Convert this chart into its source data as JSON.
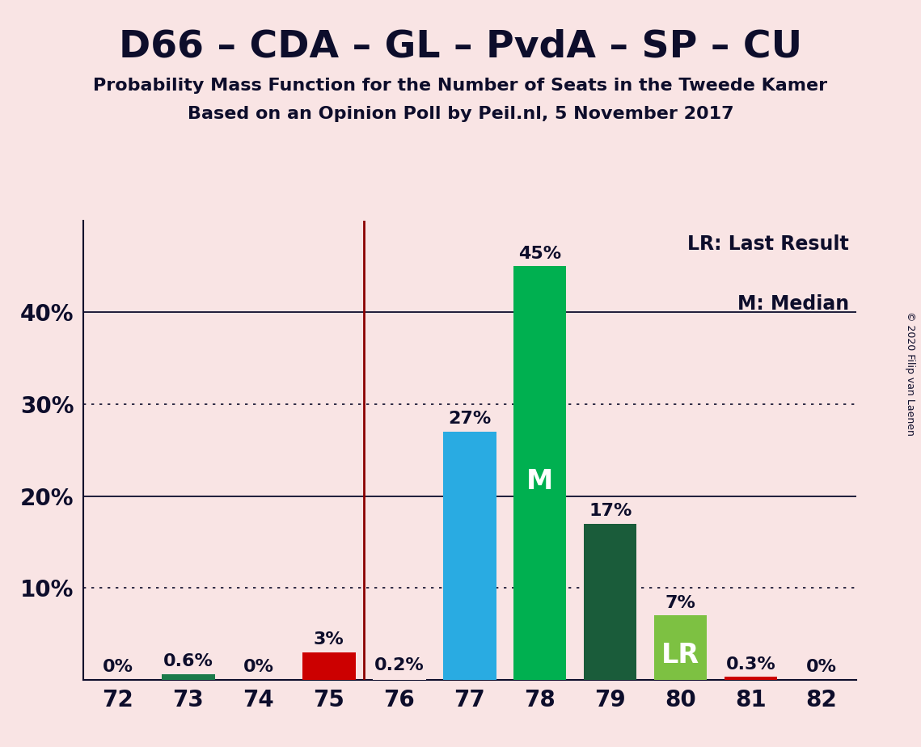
{
  "title": "D66 – CDA – GL – PvdA – SP – CU",
  "subtitle1": "Probability Mass Function for the Number of Seats in the Tweede Kamer",
  "subtitle2": "Based on an Opinion Poll by Peil.nl, 5 November 2017",
  "copyright": "© 2020 Filip van Laenen",
  "background_color": "#f9e4e4",
  "categories": [
    72,
    73,
    74,
    75,
    76,
    77,
    78,
    79,
    80,
    81,
    82
  ],
  "values": [
    0.0,
    0.6,
    0.0,
    3.0,
    0.2,
    27.0,
    45.0,
    17.0,
    7.0,
    0.3,
    0.0
  ],
  "bar_colors": [
    "#f9e4e4",
    "#1a7a4a",
    "#f9e4e4",
    "#cc0000",
    "#f9e4e4",
    "#29abe2",
    "#00b050",
    "#1a5c3a",
    "#7dc142",
    "#cc0000",
    "#f9e4e4"
  ],
  "bar_labels": [
    "0%",
    "0.6%",
    "0%",
    "3%",
    "0.2%",
    "27%",
    "45%",
    "17%",
    "7%",
    "0.3%",
    "0%"
  ],
  "median_label_bar_idx": 6,
  "median_label_text": "M",
  "lr_label_bar_idx": 8,
  "lr_label_text": "LR",
  "vline_idx": 3.5,
  "ylim": [
    0,
    50
  ],
  "yticks": [
    0,
    10,
    20,
    30,
    40
  ],
  "ytick_labels": [
    "",
    "10%",
    "20%",
    "30%",
    "40%"
  ],
  "dotted_lines": [
    10,
    30
  ],
  "solid_lines": [
    20,
    40
  ],
  "legend_text1": "LR: Last Result",
  "legend_text2": "M: Median",
  "title_fontsize": 34,
  "subtitle_fontsize": 16,
  "bar_label_fontsize": 16,
  "inbar_label_fontsize": 24,
  "axis_tick_fontsize": 20,
  "legend_fontsize": 17,
  "copyright_fontsize": 9
}
